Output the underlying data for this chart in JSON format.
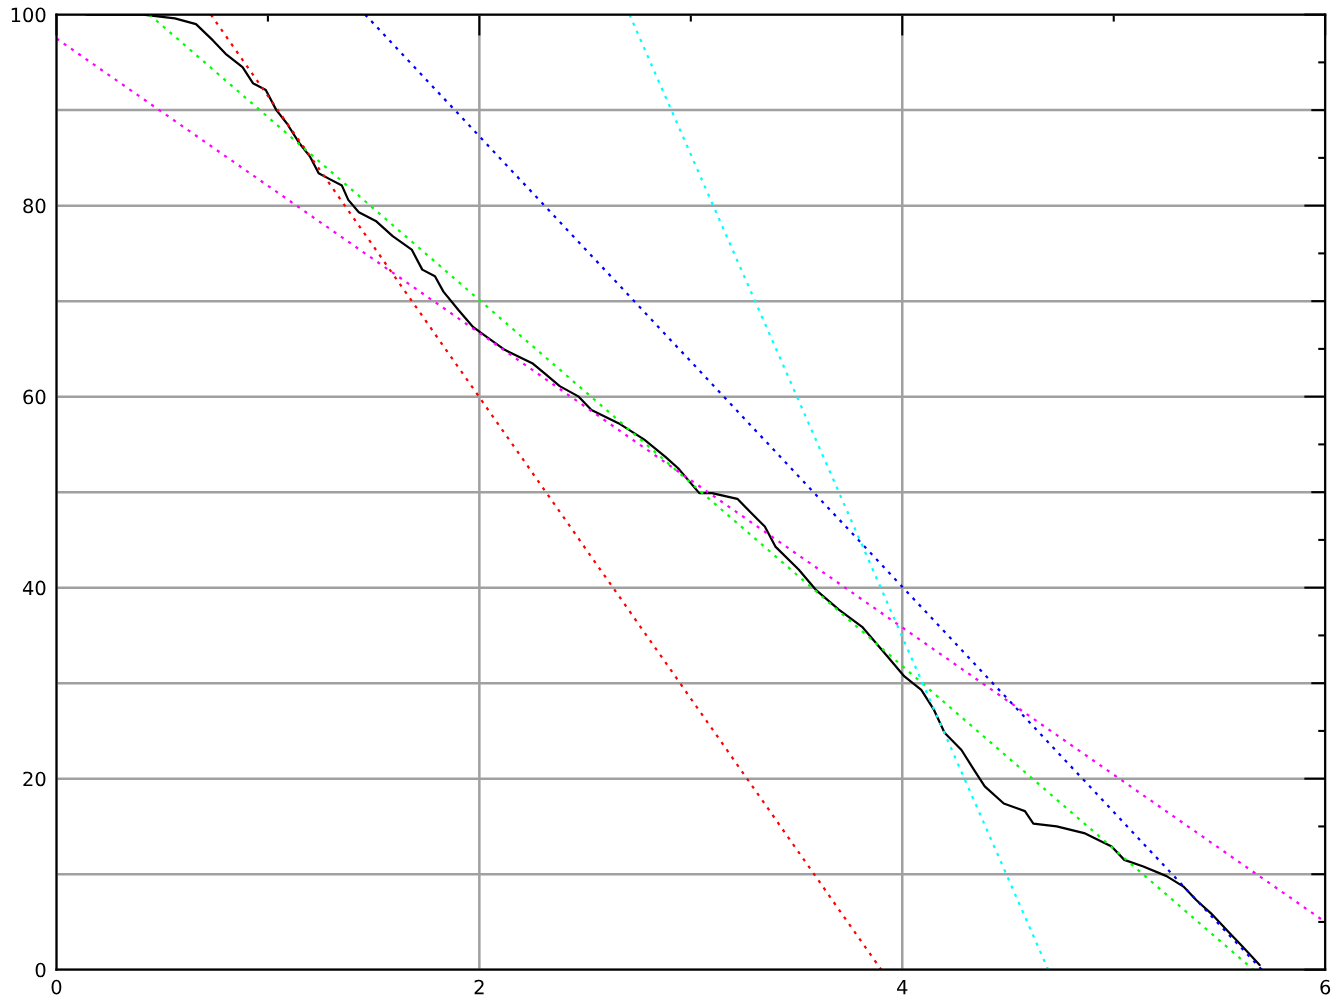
{
  "chart_data": {
    "type": "line",
    "xlim": [
      0,
      6
    ],
    "ylim": [
      0,
      100
    ],
    "xticks": [
      0,
      2,
      4,
      6
    ],
    "yticks": [
      0,
      {
        "value": 10,
        "label": null
      },
      20,
      {
        "value": 30,
        "label": null
      },
      40,
      {
        "value": 50,
        "label": null
      },
      60,
      {
        "value": 70,
        "label": null
      },
      80,
      {
        "value": 90,
        "label": null
      },
      100
    ],
    "grid": true,
    "line_style": "solid",
    "series": [
      {
        "color": "#000000",
        "x": [
          0.14,
          0.41,
          0.56,
          0.66,
          0.74,
          0.8,
          0.88,
          0.93,
          0.99,
          1.04,
          1.09,
          1.15,
          1.2,
          1.24,
          1.29,
          1.35,
          1.38,
          1.43,
          1.51,
          1.59,
          1.68,
          1.73,
          1.79,
          1.83,
          1.9,
          1.97,
          2.0,
          2.12,
          2.25,
          2.31,
          2.38,
          2.47,
          2.53,
          2.66,
          2.78,
          2.88,
          2.94,
          3.04,
          3.1,
          3.22,
          3.3,
          3.35,
          3.4,
          3.51,
          3.59,
          3.7,
          3.81,
          3.93,
          4.01,
          4.09,
          4.15,
          4.2,
          4.28,
          4.34,
          4.39,
          4.48,
          4.58,
          4.62,
          4.73,
          4.86,
          4.99,
          5.05,
          5.14,
          5.25,
          5.33,
          5.39,
          5.46,
          5.55,
          5.61,
          5.69
        ],
        "values": [
          100,
          100,
          99.6,
          99.0,
          97.3,
          95.9,
          94.5,
          92.8,
          92.1,
          90.0,
          88.6,
          86.5,
          85.1,
          83.4,
          82.8,
          82.1,
          80.6,
          79.3,
          78.4,
          76.8,
          75.4,
          73.3,
          72.6,
          71.0,
          69.1,
          67.3,
          66.8,
          64.9,
          63.5,
          62.4,
          61.1,
          60.0,
          58.6,
          57.2,
          55.5,
          53.7,
          52.5,
          49.9,
          49.9,
          49.3,
          47.5,
          46.4,
          44.3,
          41.9,
          39.8,
          37.7,
          35.9,
          32.8,
          30.7,
          29.3,
          27.2,
          24.8,
          23.0,
          20.9,
          19.2,
          17.4,
          16.6,
          15.3,
          15.0,
          14.3,
          12.9,
          11.5,
          10.8,
          9.8,
          8.7,
          7.3,
          5.9,
          3.8,
          2.4,
          0.5
        ]
      },
      {
        "color": "#ff0000",
        "line_style": "dotted",
        "x": [
          0.73,
          3.9
        ],
        "values": [
          100,
          0
        ]
      },
      {
        "color": "#00ff00",
        "line_style": "dotted",
        "x": [
          0.44,
          5.66
        ],
        "values": [
          100,
          0
        ]
      },
      {
        "color": "#0000ff",
        "line_style": "dotted",
        "x": [
          1.46,
          5.7
        ],
        "values": [
          100,
          0
        ]
      },
      {
        "color": "#00ffff",
        "line_style": "dotted",
        "x": [
          2.71,
          4.69
        ],
        "values": [
          100,
          0
        ]
      },
      {
        "color": "#ff00ff",
        "line_style": "dotted",
        "x": [
          0,
          6
        ],
        "values": [
          97.5,
          5.0
        ]
      }
    ]
  }
}
